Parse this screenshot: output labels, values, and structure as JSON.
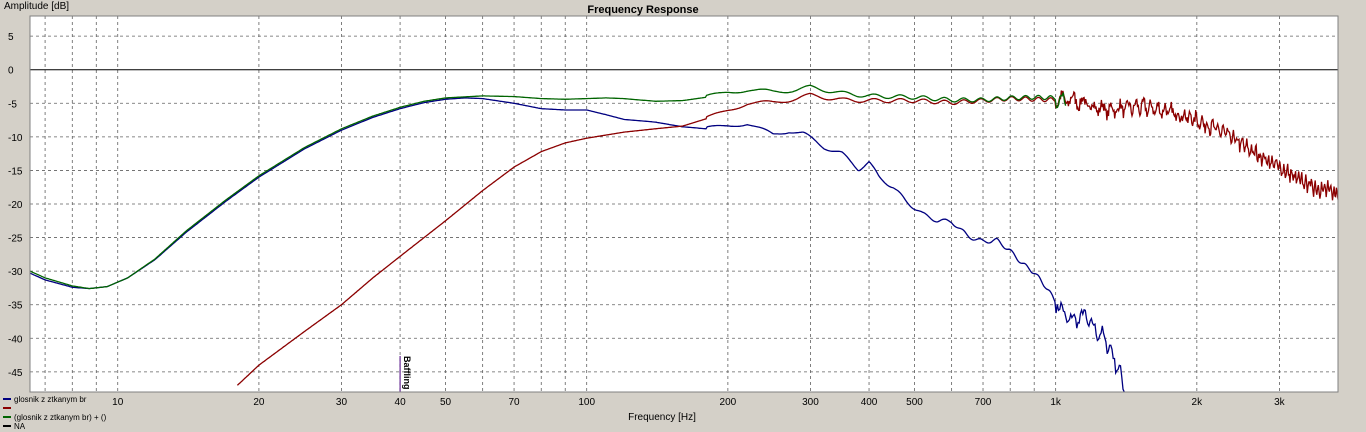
{
  "chart_data": {
    "type": "line",
    "title": "Frequency Response",
    "xlabel": "Frequency [Hz]",
    "ylabel": "Amplitude [dB]",
    "x_scale": "log",
    "xlim": [
      6.5,
      4000
    ],
    "ylim": [
      -48,
      8
    ],
    "grid": true,
    "legend_position": "bottom-left",
    "x_ticks": [
      {
        "v": 10,
        "label": "10"
      },
      {
        "v": 20,
        "label": "20"
      },
      {
        "v": 30,
        "label": "30"
      },
      {
        "v": 40,
        "label": "40"
      },
      {
        "v": 50,
        "label": "50"
      },
      {
        "v": 70,
        "label": "70"
      },
      {
        "v": 100,
        "label": "100"
      },
      {
        "v": 200,
        "label": "200"
      },
      {
        "v": 300,
        "label": "300"
      },
      {
        "v": 400,
        "label": "400"
      },
      {
        "v": 500,
        "label": "500"
      },
      {
        "v": 700,
        "label": "700"
      },
      {
        "v": 1000,
        "label": "1k"
      },
      {
        "v": 2000,
        "label": "2k"
      },
      {
        "v": 3000,
        "label": "3k"
      }
    ],
    "y_ticks": [
      {
        "v": 5,
        "label": "5"
      },
      {
        "v": 0,
        "label": "0"
      },
      {
        "v": -5,
        "label": "-5"
      },
      {
        "v": -10,
        "label": "-10"
      },
      {
        "v": -15,
        "label": "-15"
      },
      {
        "v": -20,
        "label": "-20"
      },
      {
        "v": -25,
        "label": "-25"
      },
      {
        "v": -30,
        "label": "-30"
      },
      {
        "v": -35,
        "label": "-35"
      },
      {
        "v": -40,
        "label": "-40"
      },
      {
        "v": -45,
        "label": "-45"
      }
    ],
    "marker": {
      "x": 40,
      "label": "Baffling"
    },
    "series": [
      {
        "name": "glosnik z ztkanym br",
        "color": "#000080",
        "x": [
          6.5,
          7,
          8,
          8.7,
          9.5,
          10.5,
          12,
          14,
          17,
          20,
          25,
          30,
          35,
          40,
          45,
          50,
          55,
          60,
          70,
          80,
          90,
          100,
          110,
          120,
          140,
          160,
          180,
          200,
          220,
          250,
          270,
          290,
          320,
          350,
          380,
          400,
          420,
          450,
          480,
          520,
          560,
          600,
          650,
          700,
          750,
          800,
          850,
          900,
          950,
          1000,
          1050,
          1100,
          1150,
          1200,
          1250,
          1300,
          1350,
          1400
        ],
        "y": [
          -30.3,
          -31.3,
          -32.4,
          -32.6,
          -32.3,
          -31,
          -28.3,
          -24.2,
          -19.6,
          -16,
          -11.8,
          -9,
          -7.1,
          -5.8,
          -4.9,
          -4.4,
          -4.2,
          -4.3,
          -5,
          -5.8,
          -6,
          -6,
          -6.7,
          -7.4,
          -7.8,
          -8.5,
          -8.8,
          -8.3,
          -8,
          -9.7,
          -9.1,
          -9.5,
          -11.5,
          -12.5,
          -14.8,
          -13.8,
          -16,
          -17.5,
          -19.6,
          -21.5,
          -22.5,
          -22.6,
          -24.8,
          -25.6,
          -25.4,
          -27,
          -28.9,
          -30.2,
          -32.2,
          -34.5,
          -36.8,
          -37.4,
          -36.5,
          -38.4,
          -39.4,
          -41.2,
          -44,
          -47
        ]
      },
      {
        "name": "",
        "color": "#8b0000",
        "x": [
          18,
          20,
          25,
          30,
          35,
          40,
          50,
          60,
          70,
          80,
          90,
          100,
          120,
          140,
          160,
          180,
          200,
          220,
          250,
          280,
          300,
          350,
          400,
          500,
          600,
          700,
          800,
          900,
          1000,
          1100,
          1200,
          1300,
          1500,
          1700,
          2000,
          2300,
          2600,
          3000,
          3300,
          3600,
          4000
        ],
        "y": [
          -47,
          -44,
          -39,
          -35,
          -31,
          -27.8,
          -22.5,
          -18,
          -14.5,
          -12.2,
          -10.9,
          -10.2,
          -9.3,
          -8.8,
          -8.4,
          -7.3,
          -6,
          -5,
          -4.9,
          -4.3,
          -3.8,
          -4.5,
          -4.6,
          -4.6,
          -4.9,
          -4.6,
          -4.3,
          -4.4,
          -4.5,
          -4.5,
          -5.5,
          -6,
          -5.5,
          -6,
          -7.5,
          -9.5,
          -12,
          -14.5,
          -16.5,
          -17.5,
          -18.5
        ]
      },
      {
        "name": "(glosnik z ztkanym br) + ()",
        "color": "#006400",
        "x": [
          6.5,
          7,
          8,
          8.7,
          9.5,
          10.5,
          12,
          14,
          17,
          20,
          25,
          30,
          35,
          40,
          45,
          50,
          60,
          70,
          80,
          90,
          100,
          110,
          120,
          140,
          160,
          180,
          200,
          220,
          250,
          280,
          300,
          350,
          400,
          500,
          600,
          700,
          800,
          900,
          1000,
          1050
        ],
        "y": [
          -30,
          -31,
          -32.2,
          -32.6,
          -32.3,
          -31,
          -28.2,
          -24,
          -19.4,
          -15.8,
          -11.6,
          -8.8,
          -6.9,
          -5.6,
          -4.7,
          -4.2,
          -3.9,
          -4,
          -4.3,
          -4.4,
          -4.3,
          -4.2,
          -4.3,
          -4.7,
          -4.6,
          -4.1,
          -3.3,
          -3,
          -3.3,
          -3,
          -2.6,
          -3.5,
          -3.9,
          -4.1,
          -4.5,
          -4.5,
          -4.2,
          -4.1,
          -4.2,
          -4.3
        ]
      }
    ],
    "legend_entries": [
      {
        "label": "glosnik z ztkanym br",
        "color": "#000080"
      },
      {
        "label": "",
        "color": "#8b0000"
      },
      {
        "label": "(glosnik z ztkanym br) + ()",
        "color": "#006400"
      },
      {
        "label": "NA",
        "color": "#000000"
      }
    ]
  }
}
